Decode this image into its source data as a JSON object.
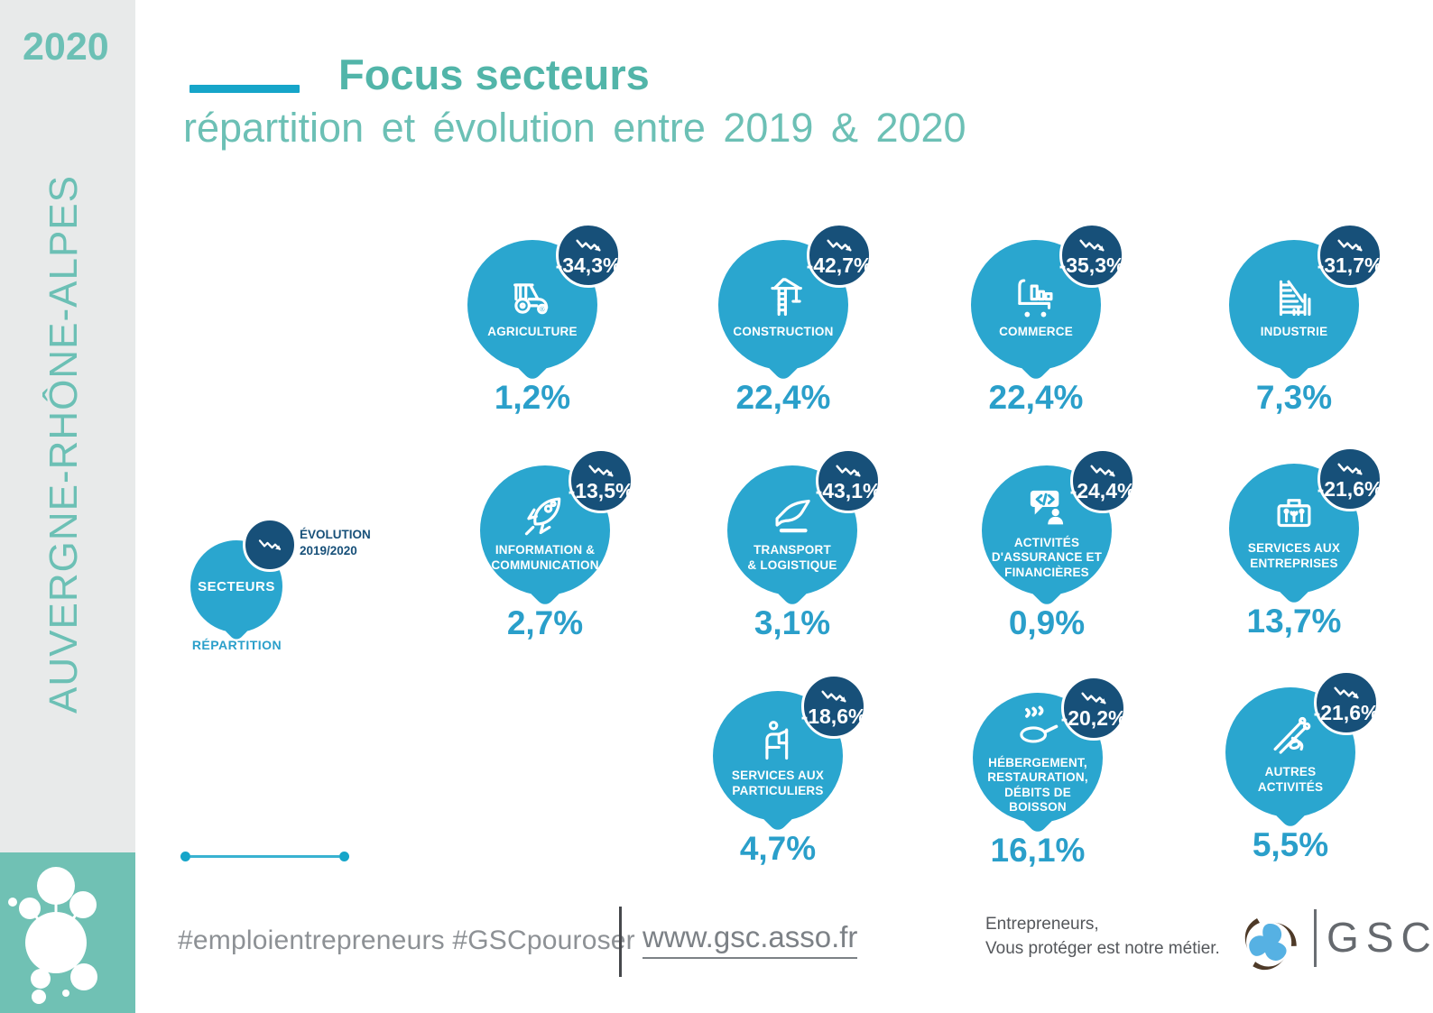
{
  "page": {
    "year": "2020",
    "region": "AUVERGNE-RHÔNE-ALPES"
  },
  "header": {
    "title": "Focus secteurs",
    "subtitle": "répartition et évolution entre 2019 & 2020"
  },
  "legend": {
    "bubble_label": "SECTEURS",
    "evolution_label": "ÉVOLUTION\n2019/2020",
    "repartition_label": "RÉPARTITION"
  },
  "sectors": {
    "items": [
      {
        "id": "agriculture",
        "label": "AGRICULTURE",
        "icon": "tractor",
        "evolution": "-34,3%",
        "repartition": "1,2%"
      },
      {
        "id": "construction",
        "label": "CONSTRUCTION",
        "icon": "crane",
        "evolution": "-42,7%",
        "repartition": "22,4%"
      },
      {
        "id": "commerce",
        "label": "COMMERCE",
        "icon": "shopping-cart",
        "evolution": "-35,3%",
        "repartition": "22,4%"
      },
      {
        "id": "industrie",
        "label": "INDUSTRIE",
        "icon": "factory",
        "evolution": "-31,7%",
        "repartition": "7,3%"
      },
      {
        "id": "information-communication",
        "label": "INFORMATION &\nCOMMUNICATION",
        "icon": "rocket",
        "evolution": "-13,5%",
        "repartition": "2,7%"
      },
      {
        "id": "transport-logistique",
        "label": "TRANSPORT\n& LOGISTIQUE",
        "icon": "airplane",
        "evolution": "-43,1%",
        "repartition": "3,1%"
      },
      {
        "id": "assurance-financieres",
        "label": "ACTIVITÉS\nD'ASSURANCE ET\nFINANCIÈRES",
        "icon": "chat-code-person",
        "evolution": "-24,4%",
        "repartition": "0,9%"
      },
      {
        "id": "services-entreprises",
        "label": "SERVICES AUX\nENTREPRISES",
        "icon": "toolbox",
        "evolution": "-21,6%",
        "repartition": "13,7%"
      },
      {
        "id": "services-particuliers",
        "label": "SERVICES AUX\nPARTICULIERS",
        "icon": "hairdresser",
        "evolution": "-18,6%",
        "repartition": "4,7%"
      },
      {
        "id": "hebergement-restauration",
        "label": "HÉBERGEMENT,\nRESTAURATION,\nDÉBITS DE\nBOISSON",
        "icon": "frying-pan",
        "evolution": "-20,2%",
        "repartition": "16,1%"
      },
      {
        "id": "autres-activites",
        "label": "AUTRES\nACTIVITÉS",
        "icon": "needle-thread",
        "evolution": "-21,6%",
        "repartition": "5,5%"
      }
    ]
  },
  "footer": {
    "hashtags": "#emploientrepreneurs #GSCpouroser",
    "website": "www.gsc.asso.fr",
    "tagline_line1": "Entrepreneurs,",
    "tagline_line2": "Vous protéger est notre métier.",
    "logo_text": "GSC"
  },
  "colors": {
    "bubble_blue": "#2aa6cf",
    "badge_navy": "#175079",
    "percent_blue": "#2a9fca",
    "teal_title": "#52b5a9",
    "teal_subtitle": "#6cc0b5",
    "square_green": "#70c1b4",
    "accent_cyan": "#16a5c9",
    "sidebar_gray": "#e8eaea",
    "footer_gray": "#8d9195"
  },
  "chart_data": {
    "type": "table",
    "title": "Focus secteurs — répartition et évolution entre 2019 & 2020",
    "region": "Auvergne-Rhône-Alpes",
    "year": 2020,
    "columns": [
      "Secteur",
      "Évolution 2019/2020 (%)",
      "Répartition (%)"
    ],
    "rows": [
      [
        "Agriculture",
        -34.3,
        1.2
      ],
      [
        "Construction",
        -42.7,
        22.4
      ],
      [
        "Commerce",
        -35.3,
        22.4
      ],
      [
        "Industrie",
        -31.7,
        7.3
      ],
      [
        "Information & communication",
        -13.5,
        2.7
      ],
      [
        "Transport & logistique",
        -43.1,
        3.1
      ],
      [
        "Activités d'assurance et financières",
        -24.4,
        0.9
      ],
      [
        "Services aux entreprises",
        -21.6,
        13.7
      ],
      [
        "Services aux particuliers",
        -18.6,
        4.7
      ],
      [
        "Hébergement, restauration, débits de boisson",
        -20.2,
        16.1
      ],
      [
        "Autres activités",
        -21.6,
        5.5
      ]
    ]
  }
}
